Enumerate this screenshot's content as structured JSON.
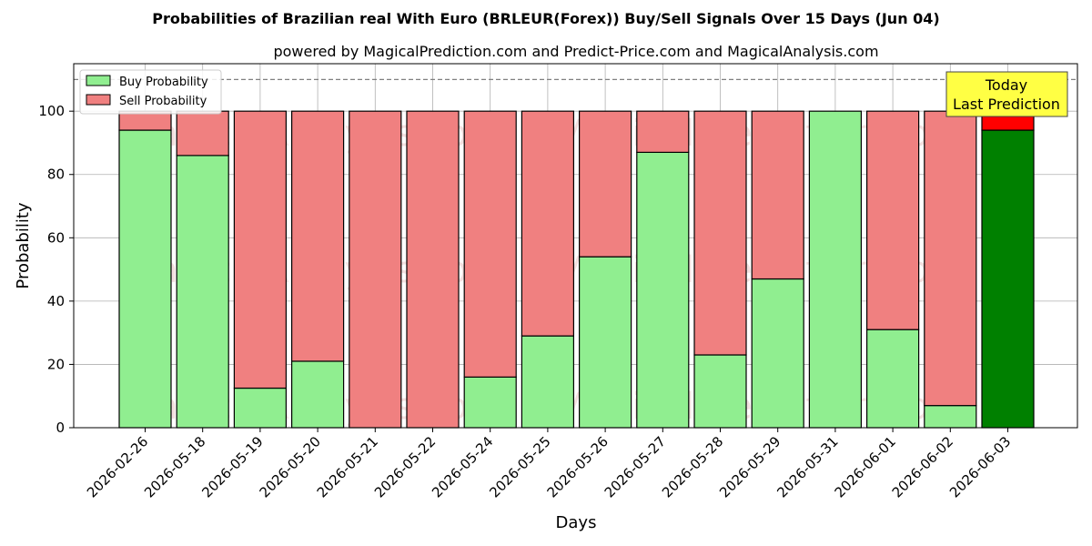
{
  "chart_data": {
    "type": "bar",
    "stacked": true,
    "title": "Probabilities of Brazilian real With Euro (BRLEUR(Forex)) Buy/Sell Signals Over 15 Days (Jun 04)",
    "subtitle": "powered by MagicalPrediction.com and Predict-Price.com and MagicalAnalysis.com",
    "xlabel": "Days",
    "ylabel": "Probability",
    "ylim": [
      0,
      115
    ],
    "yticks": [
      "0",
      "20",
      "40",
      "60",
      "80",
      "100"
    ],
    "grid": true,
    "legend_position": "top-left",
    "reference_line": 110,
    "categories": [
      "2026-02-26",
      "2026-05-18",
      "2026-05-19",
      "2026-05-20",
      "2026-05-21",
      "2026-05-22",
      "2026-05-24",
      "2026-05-25",
      "2026-05-26",
      "2026-05-27",
      "2026-05-28",
      "2026-05-29",
      "2026-05-31",
      "2026-06-01",
      "2026-06-02",
      "2026-06-03"
    ],
    "series": [
      {
        "name": "Buy Probability",
        "color": "#90ee90",
        "values": [
          94,
          86,
          12.5,
          21,
          0,
          0,
          16,
          29,
          54,
          87,
          23,
          47,
          100,
          31,
          7,
          94
        ]
      },
      {
        "name": "Sell Probability",
        "color": "#f08080",
        "values": [
          6,
          14,
          87.5,
          79,
          100,
          100,
          84,
          71,
          46,
          13,
          77,
          53,
          0,
          69,
          93,
          6
        ]
      }
    ],
    "highlight": {
      "index": 15,
      "buy_color": "#008000",
      "sell_color": "#ff0000"
    },
    "annotation": {
      "line1": "Today",
      "line2": "Last Prediction",
      "color": "#ffff44"
    },
    "watermark": [
      "MagicalAnalysis.com",
      "MagicalPrediction.com"
    ]
  }
}
